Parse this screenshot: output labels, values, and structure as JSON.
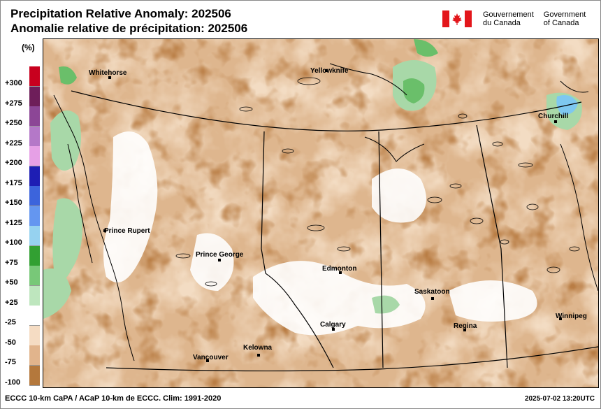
{
  "title": {
    "line1": "Precipitation Relative Anomaly: 202506",
    "line2": "Anomalie relative de précipitation: 202506"
  },
  "government": {
    "french": "Gouvernement du Canada",
    "french_l1": "Gouvernement",
    "french_l2": "du Canada",
    "english_l1": "Government",
    "english_l2": "of Canada",
    "flag_colors": {
      "red": "#e3161b",
      "white": "#ffffff"
    }
  },
  "legend": {
    "unit": "(%)",
    "items": [
      {
        "label": "+300",
        "color": "#c8001e"
      },
      {
        "label": "+275",
        "color": "#6e1e5a"
      },
      {
        "label": "+250",
        "color": "#8c4696"
      },
      {
        "label": "+225",
        "color": "#b478c8"
      },
      {
        "label": "+200",
        "color": "#e6a0e6"
      },
      {
        "label": "+175",
        "color": "#1e1eb4"
      },
      {
        "label": "+150",
        "color": "#3c64dc"
      },
      {
        "label": "+125",
        "color": "#6496f0"
      },
      {
        "label": "+100",
        "color": "#96d2f0"
      },
      {
        "label": "+75",
        "color": "#32a032"
      },
      {
        "label": "+50",
        "color": "#78c878"
      },
      {
        "label": "+25",
        "color": "#bee6be"
      },
      {
        "label": "-25",
        "color": "#ffffff"
      },
      {
        "label": "-50",
        "color": "#f5dcc3"
      },
      {
        "label": "-75",
        "color": "#e1b48c"
      },
      {
        "label": "-100",
        "color": "#b4783c"
      }
    ]
  },
  "cities": [
    {
      "name": "Whitehorse"
    },
    {
      "name": "Yellowknife"
    },
    {
      "name": "Churchill"
    },
    {
      "name": "Prince Rupert"
    },
    {
      "name": "Prince George"
    },
    {
      "name": "Edmonton"
    },
    {
      "name": "Saskatoon"
    },
    {
      "name": "Calgary"
    },
    {
      "name": "Regina"
    },
    {
      "name": "Winnipeg"
    },
    {
      "name": "Kelowna"
    },
    {
      "name": "Vancouver"
    }
  ],
  "footer": {
    "source": "ECCC 10-km CaPA / ACaP 10-km de ECCC. Clim: 1991-2020",
    "timestamp": "2025-07-02 13:20UTC"
  }
}
